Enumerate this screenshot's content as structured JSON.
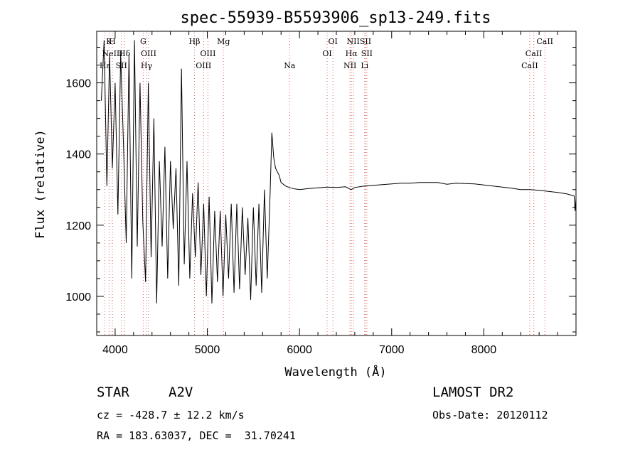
{
  "chart_data": {
    "type": "line",
    "title": "spec-55939-B5593906_sp13-249.fits",
    "xlabel": "Wavelength (Å)",
    "ylabel": "Flux (relative)",
    "xlim": [
      3800,
      9000
    ],
    "ylim": [
      890,
      1745
    ],
    "x_ticks": [
      4000,
      5000,
      6000,
      7000,
      8000
    ],
    "y_ticks": [
      1000,
      1200,
      1400,
      1600
    ],
    "grid": false,
    "series": [
      {
        "x": [
          3850,
          3880,
          3910,
          3940,
          3970,
          4000,
          4030,
          4060,
          4090,
          4120,
          4150,
          4180,
          4210,
          4240,
          4270,
          4300,
          4330,
          4360,
          4390,
          4420,
          4450,
          4480,
          4510,
          4540,
          4570,
          4600,
          4630,
          4660,
          4690,
          4720,
          4750,
          4780,
          4810,
          4840,
          4870,
          4900,
          4930,
          4960,
          4990,
          5020,
          5050,
          5080,
          5110,
          5140,
          5170,
          5200,
          5230,
          5260,
          5290,
          5320,
          5350,
          5380,
          5410,
          5440,
          5470,
          5500,
          5530,
          5560,
          5590,
          5620,
          5650,
          5680,
          5700,
          5720,
          5740,
          5760,
          5780,
          5800,
          5850,
          5900,
          5950,
          6000,
          6100,
          6200,
          6300,
          6400,
          6500,
          6560,
          6600,
          6700,
          6800,
          6900,
          7000,
          7100,
          7200,
          7300,
          7400,
          7500,
          7600,
          7700,
          7800,
          7900,
          8000,
          8100,
          8200,
          8300,
          8400,
          8500,
          8600,
          8700,
          8800,
          8900,
          8980,
          8990,
          9000
        ],
        "y": [
          1550,
          1720,
          1310,
          1680,
          1360,
          1600,
          1230,
          1680,
          1430,
          1150,
          1680,
          1050,
          1720,
          1140,
          1600,
          1210,
          1040,
          1600,
          1110,
          1500,
          980,
          1380,
          1140,
          1420,
          1050,
          1380,
          1190,
          1360,
          1030,
          1640,
          1090,
          1380,
          1050,
          1290,
          1110,
          1320,
          1060,
          1260,
          1000,
          1280,
          980,
          1240,
          1040,
          1240,
          1000,
          1230,
          1050,
          1260,
          1010,
          1260,
          1020,
          1250,
          1060,
          1220,
          990,
          1250,
          1030,
          1260,
          1010,
          1300,
          1050,
          1280,
          1460,
          1390,
          1360,
          1350,
          1340,
          1320,
          1310,
          1305,
          1302,
          1300,
          1303,
          1305,
          1307,
          1306,
          1308,
          1300,
          1306,
          1310,
          1312,
          1314,
          1316,
          1318,
          1318,
          1320,
          1320,
          1320,
          1315,
          1318,
          1317,
          1316,
          1313,
          1310,
          1307,
          1304,
          1300,
          1300,
          1298,
          1295,
          1292,
          1288,
          1282,
          1240,
          1275
        ]
      }
    ],
    "annotation_lines": [
      {
        "wavelength": 3889,
        "label": "Hε",
        "row": 3
      },
      {
        "wavelength": 3934,
        "label": "K",
        "row": 1
      },
      {
        "wavelength": 3969,
        "label": "H",
        "row": 1
      },
      {
        "wavelength": 3970,
        "label": "NeIII",
        "row": 2
      },
      {
        "wavelength": 4068,
        "label": "SII",
        "row": 3
      },
      {
        "wavelength": 4102,
        "label": "Hδ",
        "row": 2
      },
      {
        "wavelength": 4305,
        "label": "G",
        "row": 1
      },
      {
        "wavelength": 4340,
        "label": "Hγ",
        "row": 3
      },
      {
        "wavelength": 4363,
        "label": "OIII",
        "row": 2
      },
      {
        "wavelength": 4861,
        "label": "Hβ",
        "row": 1
      },
      {
        "wavelength": 4959,
        "label": "OIII",
        "row": 3
      },
      {
        "wavelength": 5007,
        "label": "OIII",
        "row": 2
      },
      {
        "wavelength": 5175,
        "label": "Mg",
        "row": 1
      },
      {
        "wavelength": 5893,
        "label": "Na",
        "row": 3
      },
      {
        "wavelength": 6300,
        "label": "OI",
        "row": 2
      },
      {
        "wavelength": 6363,
        "label": "OI",
        "row": 1
      },
      {
        "wavelength": 6548,
        "label": "NII",
        "row": 3
      },
      {
        "wavelength": 6563,
        "label": "Hα",
        "row": 2
      },
      {
        "wavelength": 6583,
        "label": "NII",
        "row": 1
      },
      {
        "wavelength": 6707,
        "label": "Li",
        "row": 3
      },
      {
        "wavelength": 6716,
        "label": "SII",
        "row": 1
      },
      {
        "wavelength": 6731,
        "label": "SII",
        "row": 2
      },
      {
        "wavelength": 8498,
        "label": "CaII",
        "row": 3
      },
      {
        "wavelength": 8542,
        "label": "CaII",
        "row": 2
      },
      {
        "wavelength": 8662,
        "label": "CaII",
        "row": 1
      }
    ]
  },
  "info": {
    "object_class": "STAR",
    "subclass": "A2V",
    "survey": "LAMOST DR2",
    "redshift_text": "cz = -428.7 ± 12.2 km/s",
    "obs_date_text": "Obs-Date: 20120112",
    "coord_text": "RA = 183.63037, DEC =  31.70241"
  },
  "colors": {
    "axis": "#000000",
    "spectrum": "#000000",
    "line_markers": "#e06060",
    "background": "#ffffff"
  }
}
